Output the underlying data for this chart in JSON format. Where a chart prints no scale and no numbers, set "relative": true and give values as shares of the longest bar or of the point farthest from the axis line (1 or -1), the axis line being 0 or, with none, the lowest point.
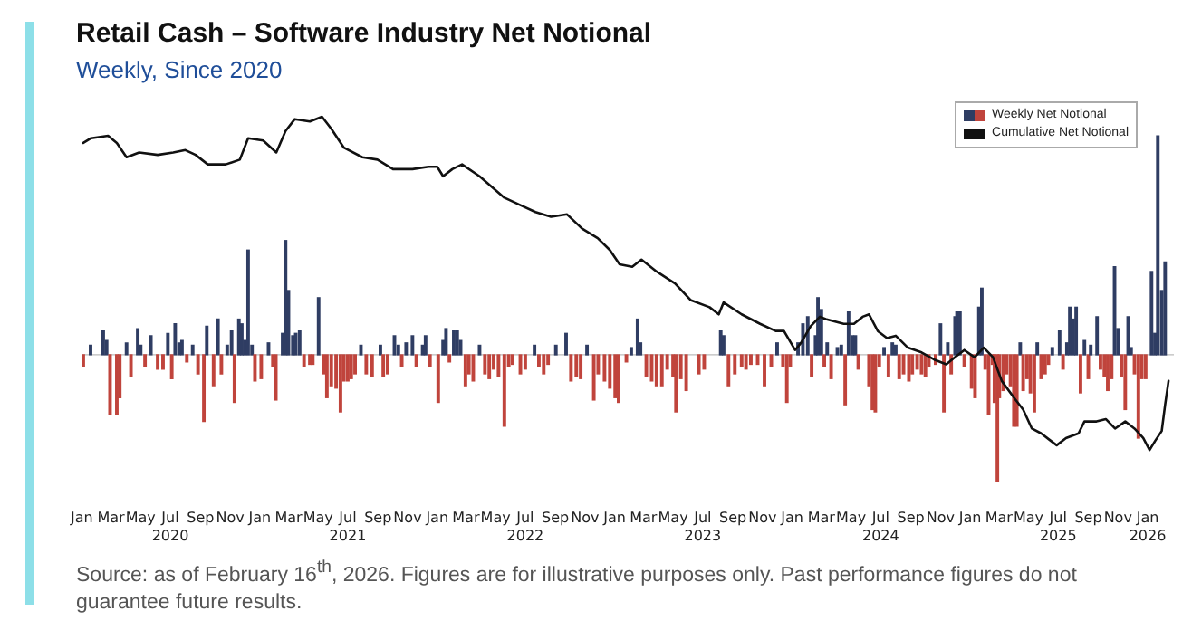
{
  "chart_data": {
    "type": "bar",
    "title": "Retail Cash – Software Industry Net Notional",
    "subtitle": "Weekly, Since 2020",
    "relative": true,
    "legend": "top right",
    "annotations": [
      "Source: as of February 16$^{th}$, 2026. Figures are for illustrative purposes only. Past performance figures do not guarantee future results."
    ],
    "xlim": [
      "2020-01",
      "2026-02-24"
    ],
    "xticks": [
      {
        "value": "2020-01",
        "label": "Jan"
      },
      {
        "value": "2020-03",
        "label": "Mar"
      },
      {
        "value": "2020-05",
        "label": "May"
      },
      {
        "value": "2020-07",
        "label": "Jul\n2020"
      },
      {
        "value": "2020-09",
        "label": "Sep"
      },
      {
        "value": "2020-11",
        "label": "Nov"
      },
      {
        "value": "2021-01",
        "label": "Jan"
      },
      {
        "value": "2021-03",
        "label": "Mar"
      },
      {
        "value": "2021-05",
        "label": "May"
      },
      {
        "value": "2021-07",
        "label": "Jul\n2021"
      },
      {
        "value": "2021-09",
        "label": "Sep"
      },
      {
        "value": "2021-11",
        "label": "Nov"
      },
      {
        "value": "2022-01",
        "label": "Jan"
      },
      {
        "value": "2022-03",
        "label": "Mar"
      },
      {
        "value": "2022-05",
        "label": "May"
      },
      {
        "value": "2022-07",
        "label": "Jul\n2022"
      },
      {
        "value": "2022-09",
        "label": "Sep"
      },
      {
        "value": "2022-11",
        "label": "Nov"
      },
      {
        "value": "2023-01",
        "label": "Jan"
      },
      {
        "value": "2023-03",
        "label": "Mar"
      },
      {
        "value": "2023-05",
        "label": "May"
      },
      {
        "value": "2023-07",
        "label": "Jul\n2023"
      },
      {
        "value": "2023-09",
        "label": "Sep"
      },
      {
        "value": "2023-11",
        "label": "Nov"
      },
      {
        "value": "2024-01",
        "label": "Jan"
      },
      {
        "value": "2024-03",
        "label": "Mar"
      },
      {
        "value": "2024-05",
        "label": "May"
      },
      {
        "value": "2024-07",
        "label": "Jul\n2024"
      },
      {
        "value": "2024-09",
        "label": "Sep"
      },
      {
        "value": "2024-11",
        "label": "Nov"
      },
      {
        "value": "2025-01",
        "label": "Jan"
      },
      {
        "value": "2025-03",
        "label": "Mar"
      },
      {
        "value": "2025-05",
        "label": "May"
      },
      {
        "value": "2025-07",
        "label": "Jul\n2025"
      },
      {
        "value": "2025-09",
        "label": "Sep"
      },
      {
        "value": "2025-11",
        "label": "Nov"
      },
      {
        "value": "2026-01",
        "label": "Jan\n2026"
      }
    ],
    "series": [
      {
        "name": "Weekly Net Notional",
        "x": [
          "2020-01-04",
          "2020-01-19",
          "2020-02-14",
          "2020-02-21",
          "2020-02-28",
          "2020-03-13",
          "2020-03-19",
          "2020-04-02",
          "2020-04-11",
          "2020-04-25",
          "2020-05-01",
          "2020-05-10",
          "2020-05-22",
          "2020-06-05",
          "2020-06-16",
          "2020-06-26",
          "2020-07-04",
          "2020-07-11",
          "2020-07-19",
          "2020-07-25",
          "2020-08-04",
          "2020-08-16",
          "2020-08-27",
          "2020-09-08",
          "2020-09-14",
          "2020-09-28",
          "2020-10-07",
          "2020-10-14",
          "2020-10-26",
          "2020-11-04",
          "2020-11-10",
          "2020-11-19",
          "2020-11-25",
          "2020-12-01",
          "2020-12-08",
          "2020-12-16",
          "2020-12-22",
          "2021-01-04",
          "2021-01-19",
          "2021-01-28",
          "2021-02-03",
          "2021-02-17",
          "2021-02-23",
          "2021-03-01",
          "2021-03-10",
          "2021-03-16",
          "2021-03-24",
          "2021-04-02",
          "2021-04-14",
          "2021-04-20",
          "2021-05-02",
          "2021-05-12",
          "2021-05-19",
          "2021-05-28",
          "2021-06-07",
          "2021-06-16",
          "2021-06-23",
          "2021-07-01",
          "2021-07-08",
          "2021-07-16",
          "2021-07-28",
          "2021-08-08",
          "2021-08-20",
          "2021-09-06",
          "2021-09-12",
          "2021-09-21",
          "2021-10-05",
          "2021-10-13",
          "2021-10-20",
          "2021-10-29",
          "2021-11-11",
          "2021-11-19",
          "2021-12-02",
          "2021-12-08",
          "2021-12-17",
          "2022-01-03",
          "2022-01-13",
          "2022-01-19",
          "2022-01-26",
          "2022-02-04",
          "2022-02-11",
          "2022-02-18",
          "2022-02-28",
          "2022-03-07",
          "2022-03-16",
          "2022-03-29",
          "2022-04-09",
          "2022-04-18",
          "2022-04-27",
          "2022-05-07",
          "2022-05-19",
          "2022-05-28",
          "2022-06-05",
          "2022-06-21",
          "2022-07-01",
          "2022-07-20",
          "2022-07-29",
          "2022-08-08",
          "2022-08-17",
          "2022-09-02",
          "2022-09-23",
          "2022-10-03",
          "2022-10-14",
          "2022-10-23",
          "2022-11-05",
          "2022-11-19",
          "2022-11-28",
          "2022-12-11",
          "2022-12-22",
          "2023-01-02",
          "2023-01-09",
          "2023-01-25",
          "2023-02-04",
          "2023-02-17",
          "2023-02-23",
          "2023-03-07",
          "2023-03-18",
          "2023-03-28",
          "2023-04-08",
          "2023-04-19",
          "2023-05-01",
          "2023-05-07",
          "2023-05-17",
          "2023-05-28",
          "2023-06-23",
          "2023-07-04",
          "2023-08-07",
          "2023-08-13",
          "2023-08-23",
          "2023-09-05",
          "2023-09-19",
          "2023-09-28",
          "2023-10-08",
          "2023-10-22",
          "2023-11-05",
          "2023-11-19",
          "2023-12-01",
          "2023-12-13",
          "2023-12-21",
          "2023-12-28",
          "2024-01-13",
          "2024-01-23",
          "2024-02-02",
          "2024-02-10",
          "2024-02-18",
          "2024-02-23",
          "2024-03-01",
          "2024-03-07",
          "2024-03-13",
          "2024-03-21",
          "2024-04-03",
          "2024-04-11",
          "2024-04-19",
          "2024-04-26",
          "2024-05-04",
          "2024-05-10",
          "2024-05-16",
          "2024-06-07",
          "2024-06-14",
          "2024-06-20",
          "2024-06-28",
          "2024-07-08",
          "2024-07-17",
          "2024-07-25",
          "2024-08-01",
          "2024-08-08",
          "2024-08-17",
          "2024-08-28",
          "2024-09-04",
          "2024-09-14",
          "2024-09-23",
          "2024-10-01",
          "2024-10-08",
          "2024-10-22",
          "2024-11-01",
          "2024-11-08",
          "2024-11-16",
          "2024-11-23",
          "2024-12-01",
          "2024-12-05",
          "2024-12-11",
          "2024-12-20",
          "2025-01-04",
          "2025-01-11",
          "2025-01-19",
          "2025-01-25",
          "2025-02-01",
          "2025-02-08",
          "2025-02-16",
          "2025-02-20",
          "2025-02-26",
          "2025-03-02",
          "2025-03-10",
          "2025-03-17",
          "2025-03-25",
          "2025-04-01",
          "2025-04-07",
          "2025-04-14",
          "2025-04-20",
          "2025-04-28",
          "2025-05-05",
          "2025-05-13",
          "2025-05-19",
          "2025-05-27",
          "2025-06-04",
          "2025-06-11",
          "2025-06-19",
          "2025-07-04",
          "2025-07-11",
          "2025-07-19",
          "2025-07-25",
          "2025-08-01",
          "2025-08-07",
          "2025-08-16",
          "2025-08-24",
          "2025-09-01",
          "2025-09-06",
          "2025-09-19",
          "2025-09-26",
          "2025-10-04",
          "2025-10-11",
          "2025-10-19",
          "2025-10-25",
          "2025-11-01",
          "2025-11-08",
          "2025-11-16",
          "2025-11-22",
          "2025-11-28",
          "2025-12-05",
          "2025-12-13",
          "2025-12-20",
          "2025-12-28",
          "2026-01-09",
          "2026-01-16",
          "2026-01-22",
          "2026-01-30",
          "2026-02-06"
        ],
        "values": [
          -0.05,
          0.04,
          0.1,
          0.06,
          -0.25,
          -0.25,
          -0.18,
          0.05,
          -0.09,
          0.11,
          0.04,
          -0.05,
          0.08,
          -0.06,
          -0.06,
          0.09,
          -0.1,
          0.13,
          0.05,
          0.06,
          -0.03,
          0.04,
          -0.08,
          -0.28,
          0.12,
          -0.13,
          0.15,
          -0.08,
          0.04,
          0.1,
          -0.2,
          0.15,
          0.13,
          0.06,
          0.44,
          0.04,
          -0.11,
          -0.1,
          0.05,
          -0.05,
          -0.19,
          0.09,
          0.48,
          0.27,
          0.08,
          0.09,
          0.1,
          -0.05,
          -0.04,
          -0.04,
          0.24,
          -0.08,
          -0.18,
          -0.13,
          -0.14,
          -0.24,
          -0.11,
          -0.11,
          -0.1,
          -0.08,
          0.04,
          -0.08,
          -0.09,
          0.04,
          -0.09,
          -0.08,
          0.08,
          0.04,
          -0.05,
          0.05,
          0.08,
          -0.05,
          0.04,
          0.08,
          -0.05,
          -0.2,
          0.06,
          0.11,
          -0.03,
          0.1,
          0.1,
          0.06,
          -0.13,
          -0.08,
          -0.11,
          0.04,
          -0.08,
          -0.1,
          -0.06,
          -0.09,
          -0.3,
          -0.05,
          -0.04,
          -0.08,
          -0.06,
          0.04,
          -0.05,
          -0.08,
          -0.04,
          0.04,
          0.09,
          -0.11,
          -0.09,
          -0.1,
          0.04,
          -0.19,
          -0.08,
          -0.11,
          -0.14,
          -0.18,
          -0.2,
          -0.03,
          0.03,
          0.15,
          0.05,
          -0.09,
          -0.11,
          -0.13,
          -0.13,
          -0.06,
          -0.09,
          -0.24,
          -0.1,
          -0.15,
          -0.08,
          -0.06,
          0.1,
          0.08,
          -0.13,
          -0.08,
          -0.05,
          -0.06,
          -0.04,
          -0.04,
          -0.13,
          -0.05,
          0.05,
          -0.05,
          -0.2,
          -0.05,
          0.05,
          0.13,
          0.16,
          -0.09,
          0.08,
          0.24,
          0.19,
          -0.05,
          0.05,
          -0.1,
          0.03,
          0.04,
          -0.21,
          0.18,
          0.08,
          0.08,
          -0.06,
          -0.13,
          -0.23,
          -0.24,
          -0.05,
          0.03,
          -0.09,
          0.05,
          0.04,
          -0.1,
          -0.08,
          -0.11,
          -0.08,
          -0.06,
          -0.08,
          -0.09,
          -0.05,
          -0.04,
          0.13,
          -0.24,
          0.05,
          -0.08,
          0.16,
          0.18,
          0.18,
          -0.05,
          -0.14,
          -0.18,
          0.2,
          0.28,
          -0.06,
          -0.25,
          -0.04,
          -0.2,
          -0.53,
          -0.18,
          -0.15,
          -0.08,
          -0.13,
          -0.3,
          -0.3,
          0.05,
          -0.15,
          -0.1,
          -0.16,
          -0.24,
          0.05,
          -0.1,
          -0.08,
          -0.04,
          0.03,
          0.1,
          -0.06,
          0.05,
          0.2,
          0.15,
          0.2,
          -0.16,
          0.06,
          -0.1,
          0.04,
          0.16,
          -0.06,
          -0.09,
          -0.15,
          -0.1,
          0.37,
          0.11,
          -0.09,
          -0.23,
          0.16,
          0.03,
          -0.08,
          -0.35,
          -0.1,
          -0.1,
          0.35,
          0.09,
          0.92,
          0.27,
          0.39
        ],
        "colors": [
          "#c0443c",
          "#2f3d63",
          "#2f3d63",
          "#2f3d63",
          "#c0443c",
          "#c0443c",
          "#c0443c",
          "#2f3d63",
          "#c0443c",
          "#2f3d63",
          "#2f3d63",
          "#c0443c",
          "#2f3d63",
          "#c0443c",
          "#c0443c",
          "#2f3d63",
          "#c0443c",
          "#2f3d63",
          "#2f3d63",
          "#2f3d63",
          "#c0443c",
          "#2f3d63",
          "#c0443c",
          "#c0443c",
          "#2f3d63",
          "#c0443c",
          "#2f3d63",
          "#c0443c",
          "#2f3d63",
          "#2f3d63",
          "#c0443c",
          "#2f3d63",
          "#2f3d63",
          "#2f3d63",
          "#2f3d63",
          "#2f3d63",
          "#c0443c",
          "#c0443c",
          "#2f3d63",
          "#c0443c",
          "#c0443c",
          "#2f3d63",
          "#2f3d63",
          "#2f3d63",
          "#2f3d63",
          "#2f3d63",
          "#2f3d63",
          "#c0443c",
          "#c0443c",
          "#c0443c",
          "#2f3d63",
          "#c0443c",
          "#c0443c",
          "#c0443c",
          "#c0443c",
          "#c0443c",
          "#c0443c",
          "#c0443c",
          "#c0443c",
          "#c0443c",
          "#2f3d63",
          "#c0443c",
          "#c0443c",
          "#2f3d63",
          "#c0443c",
          "#c0443c",
          "#2f3d63",
          "#2f3d63",
          "#c0443c",
          "#2f3d63",
          "#2f3d63",
          "#c0443c",
          "#2f3d63",
          "#2f3d63",
          "#c0443c",
          "#c0443c",
          "#2f3d63",
          "#2f3d63",
          "#c0443c",
          "#2f3d63",
          "#2f3d63",
          "#2f3d63",
          "#c0443c",
          "#c0443c",
          "#c0443c",
          "#2f3d63",
          "#c0443c",
          "#c0443c",
          "#c0443c",
          "#c0443c",
          "#c0443c",
          "#c0443c",
          "#c0443c",
          "#c0443c",
          "#c0443c",
          "#2f3d63",
          "#c0443c",
          "#c0443c",
          "#c0443c",
          "#2f3d63",
          "#2f3d63",
          "#c0443c",
          "#c0443c",
          "#c0443c",
          "#2f3d63",
          "#c0443c",
          "#c0443c",
          "#c0443c",
          "#c0443c",
          "#c0443c",
          "#c0443c",
          "#c0443c",
          "#2f3d63",
          "#2f3d63",
          "#2f3d63",
          "#c0443c",
          "#c0443c",
          "#c0443c",
          "#c0443c",
          "#c0443c",
          "#c0443c",
          "#c0443c",
          "#c0443c",
          "#c0443c",
          "#c0443c",
          "#c0443c",
          "#2f3d63",
          "#2f3d63",
          "#c0443c",
          "#c0443c",
          "#c0443c",
          "#c0443c",
          "#c0443c",
          "#c0443c",
          "#c0443c",
          "#c0443c",
          "#2f3d63",
          "#c0443c",
          "#c0443c",
          "#c0443c",
          "#2f3d63",
          "#2f3d63",
          "#2f3d63",
          "#c0443c",
          "#2f3d63",
          "#2f3d63",
          "#2f3d63",
          "#c0443c",
          "#2f3d63",
          "#c0443c",
          "#2f3d63",
          "#2f3d63",
          "#c0443c",
          "#2f3d63",
          "#2f3d63",
          "#2f3d63",
          "#c0443c",
          "#c0443c",
          "#c0443c",
          "#c0443c",
          "#c0443c",
          "#2f3d63",
          "#c0443c",
          "#2f3d63",
          "#2f3d63",
          "#c0443c",
          "#c0443c",
          "#c0443c",
          "#c0443c",
          "#c0443c",
          "#c0443c",
          "#c0443c",
          "#c0443c",
          "#c0443c",
          "#2f3d63",
          "#c0443c",
          "#2f3d63",
          "#c0443c",
          "#2f3d63",
          "#2f3d63",
          "#2f3d63",
          "#c0443c",
          "#c0443c",
          "#c0443c",
          "#2f3d63",
          "#2f3d63",
          "#c0443c",
          "#c0443c",
          "#c0443c",
          "#c0443c",
          "#c0443c",
          "#c0443c",
          "#c0443c",
          "#c0443c",
          "#c0443c",
          "#c0443c",
          "#c0443c",
          "#2f3d63",
          "#c0443c",
          "#c0443c",
          "#c0443c",
          "#c0443c",
          "#2f3d63",
          "#c0443c",
          "#c0443c",
          "#c0443c",
          "#2f3d63",
          "#2f3d63",
          "#c0443c",
          "#2f3d63",
          "#2f3d63",
          "#2f3d63",
          "#2f3d63",
          "#c0443c",
          "#2f3d63",
          "#c0443c",
          "#2f3d63",
          "#2f3d63",
          "#c0443c",
          "#c0443c",
          "#c0443c",
          "#c0443c",
          "#2f3d63",
          "#2f3d63",
          "#c0443c",
          "#c0443c",
          "#2f3d63",
          "#2f3d63",
          "#c0443c",
          "#c0443c",
          "#c0443c",
          "#c0443c",
          "#2f3d63",
          "#2f3d63",
          "#2f3d63",
          "#2f3d63",
          "#2f3d63"
        ]
      },
      {
        "name": "Cumulative Net Notional",
        "type": "line",
        "color": "#111111",
        "x": [
          "2020-01-04",
          "2020-01-20",
          "2020-02-24",
          "2020-03-13",
          "2020-04-02",
          "2020-04-28",
          "2020-06-05",
          "2020-07-07",
          "2020-08-01",
          "2020-08-22",
          "2020-09-16",
          "2020-10-23",
          "2020-11-21",
          "2020-12-08",
          "2021-01-08",
          "2021-02-04",
          "2021-02-23",
          "2021-03-14",
          "2021-04-14",
          "2021-05-09",
          "2021-05-28",
          "2021-06-23",
          "2021-07-31",
          "2021-08-31",
          "2021-10-02",
          "2021-11-11",
          "2021-12-14",
          "2022-01-01",
          "2022-01-13",
          "2022-02-01",
          "2022-02-21",
          "2022-03-29",
          "2022-05-19",
          "2022-06-20",
          "2022-07-22",
          "2022-08-23",
          "2022-09-25",
          "2022-10-26",
          "2022-11-27",
          "2022-12-22",
          "2023-01-11",
          "2023-02-06",
          "2023-02-25",
          "2023-03-28",
          "2023-05-05",
          "2023-06-06",
          "2023-07-15",
          "2023-08-03",
          "2023-08-13",
          "2023-09-19",
          "2023-10-27",
          "2023-11-28",
          "2023-12-15",
          "2024-01-07",
          "2024-01-19",
          "2024-02-08",
          "2024-02-27",
          "2024-03-10",
          "2024-04-16",
          "2024-05-07",
          "2024-05-25",
          "2024-06-07",
          "2024-06-25",
          "2024-07-14",
          "2024-08-01",
          "2024-08-26",
          "2024-09-23",
          "2024-10-19",
          "2024-11-13",
          "2024-12-01",
          "2024-12-20",
          "2025-01-10",
          "2025-01-29",
          "2025-02-17",
          "2025-03-07",
          "2025-04-01",
          "2025-04-20",
          "2025-05-08",
          "2025-05-27",
          "2025-06-15",
          "2025-06-28",
          "2025-07-17",
          "2025-08-12",
          "2025-08-24",
          "2025-09-18",
          "2025-10-07",
          "2025-10-26",
          "2025-11-16",
          "2025-12-05",
          "2025-12-23",
          "2026-01-05",
          "2026-01-17",
          "2026-01-30",
          "2026-02-06",
          "2026-02-13"
        ],
        "values": [
          0.89,
          0.91,
          0.92,
          0.89,
          0.83,
          0.85,
          0.84,
          0.85,
          0.86,
          0.84,
          0.8,
          0.8,
          0.82,
          0.91,
          0.9,
          0.85,
          0.94,
          0.99,
          0.98,
          1.0,
          0.95,
          0.87,
          0.83,
          0.82,
          0.78,
          0.78,
          0.79,
          0.79,
          0.75,
          0.78,
          0.8,
          0.75,
          0.66,
          0.63,
          0.6,
          0.58,
          0.59,
          0.53,
          0.49,
          0.44,
          0.38,
          0.37,
          0.4,
          0.35,
          0.3,
          0.23,
          0.2,
          0.17,
          0.22,
          0.17,
          0.13,
          0.1,
          0.1,
          0.02,
          0.05,
          0.12,
          0.16,
          0.15,
          0.13,
          0.13,
          0.16,
          0.17,
          0.1,
          0.07,
          0.08,
          0.03,
          0.01,
          -0.02,
          -0.04,
          -0.01,
          0.02,
          -0.01,
          0.03,
          -0.01,
          -0.11,
          -0.18,
          -0.23,
          -0.31,
          -0.33,
          -0.36,
          -0.38,
          -0.35,
          -0.33,
          -0.28,
          -0.28,
          -0.27,
          -0.31,
          -0.28,
          -0.31,
          -0.35,
          -0.4,
          -0.36,
          -0.32,
          -0.21,
          -0.11
        ]
      }
    ]
  }
}
